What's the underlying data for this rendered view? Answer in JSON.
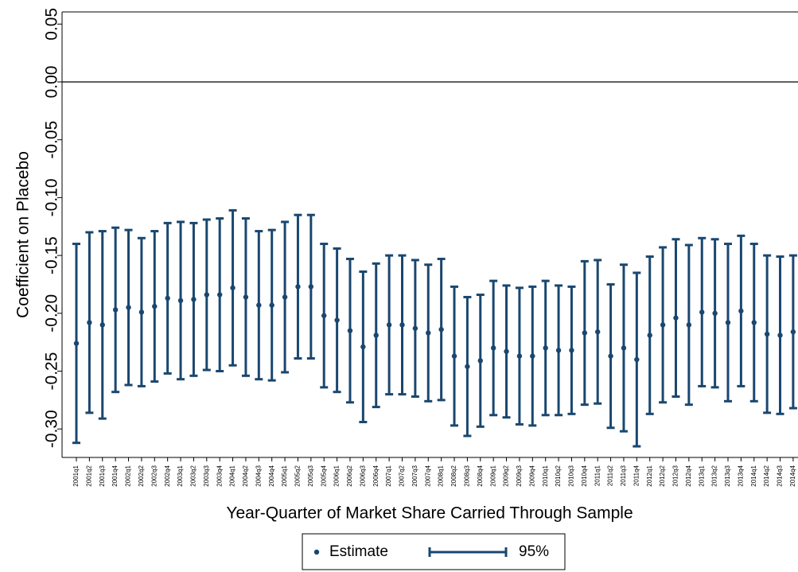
{
  "chart_data": {
    "type": "errorbar",
    "y_label": "Coefficient on Placebo",
    "x_label": "Year-Quarter of Market Share Carried Through Sample",
    "categories": [
      "2001q1",
      "2001q2",
      "2001q3",
      "2001q4",
      "2002q1",
      "2002q2",
      "2002q3",
      "2002q4",
      "2003q1",
      "2003q2",
      "2003q3",
      "2003q4",
      "2004q1",
      "2004q2",
      "2004q3",
      "2004q4",
      "2005q1",
      "2005q2",
      "2005q3",
      "2005q4",
      "2006q1",
      "2006q2",
      "2006q3",
      "2006q4",
      "2007q1",
      "2007q2",
      "2007q3",
      "2007q4",
      "2008q1",
      "2008q2",
      "2008q3",
      "2008q4",
      "2009q1",
      "2009q2",
      "2009q3",
      "2009q4",
      "2010q1",
      "2010q2",
      "2010q3",
      "2010q4",
      "2011q1",
      "2011q2",
      "2011q3",
      "2011q4",
      "2012q1",
      "2012q2",
      "2012q3",
      "2012q4",
      "2013q1",
      "2013q2",
      "2013q3",
      "2013q4",
      "2014q1",
      "2014q2",
      "2014q3",
      "2014q4"
    ],
    "series": [
      {
        "name": "Estimate",
        "error_name": "95%",
        "color": "#1a476f",
        "values": [
          -0.226,
          -0.208,
          -0.21,
          -0.197,
          -0.195,
          -0.199,
          -0.194,
          -0.187,
          -0.189,
          -0.188,
          -0.184,
          -0.184,
          -0.178,
          -0.186,
          -0.193,
          -0.193,
          -0.186,
          -0.177,
          -0.177,
          -0.202,
          -0.206,
          -0.215,
          -0.229,
          -0.219,
          -0.21,
          -0.21,
          -0.213,
          -0.217,
          -0.214,
          -0.237,
          -0.246,
          -0.241,
          -0.23,
          -0.233,
          -0.237,
          -0.237,
          -0.23,
          -0.232,
          -0.232,
          -0.217,
          -0.216,
          -0.237,
          -0.23,
          -0.24,
          -0.219,
          -0.21,
          -0.204,
          -0.21,
          -0.199,
          -0.2,
          -0.208,
          -0.198,
          -0.208,
          -0.218,
          -0.219,
          -0.216
        ],
        "errors": [
          0.086,
          0.078,
          0.081,
          0.071,
          0.067,
          0.064,
          0.065,
          0.065,
          0.068,
          0.066,
          0.065,
          0.066,
          0.067,
          0.068,
          0.064,
          0.065,
          0.065,
          0.062,
          0.062,
          0.062,
          0.062,
          0.062,
          0.065,
          0.062,
          0.06,
          0.06,
          0.059,
          0.059,
          0.061,
          0.06,
          0.06,
          0.057,
          0.058,
          0.057,
          0.059,
          0.06,
          0.058,
          0.056,
          0.055,
          0.062,
          0.062,
          0.062,
          0.072,
          0.075,
          0.068,
          0.067,
          0.068,
          0.069,
          0.064,
          0.064,
          0.068,
          0.065,
          0.068,
          0.068,
          0.068,
          0.066
        ]
      }
    ],
    "ylim": [
      -0.3246,
      0.0605
    ],
    "yticks": [
      0.05,
      {
        "value": 0,
        "label": "0.00"
      },
      -0.05,
      {
        "value": -0.1,
        "label": "-0.10"
      },
      -0.15,
      {
        "value": -0.2,
        "label": "-0.20"
      },
      -0.25,
      {
        "value": -0.3,
        "label": "-0.30"
      }
    ],
    "reference_line": 0,
    "grid": false,
    "legend": "bottom"
  }
}
